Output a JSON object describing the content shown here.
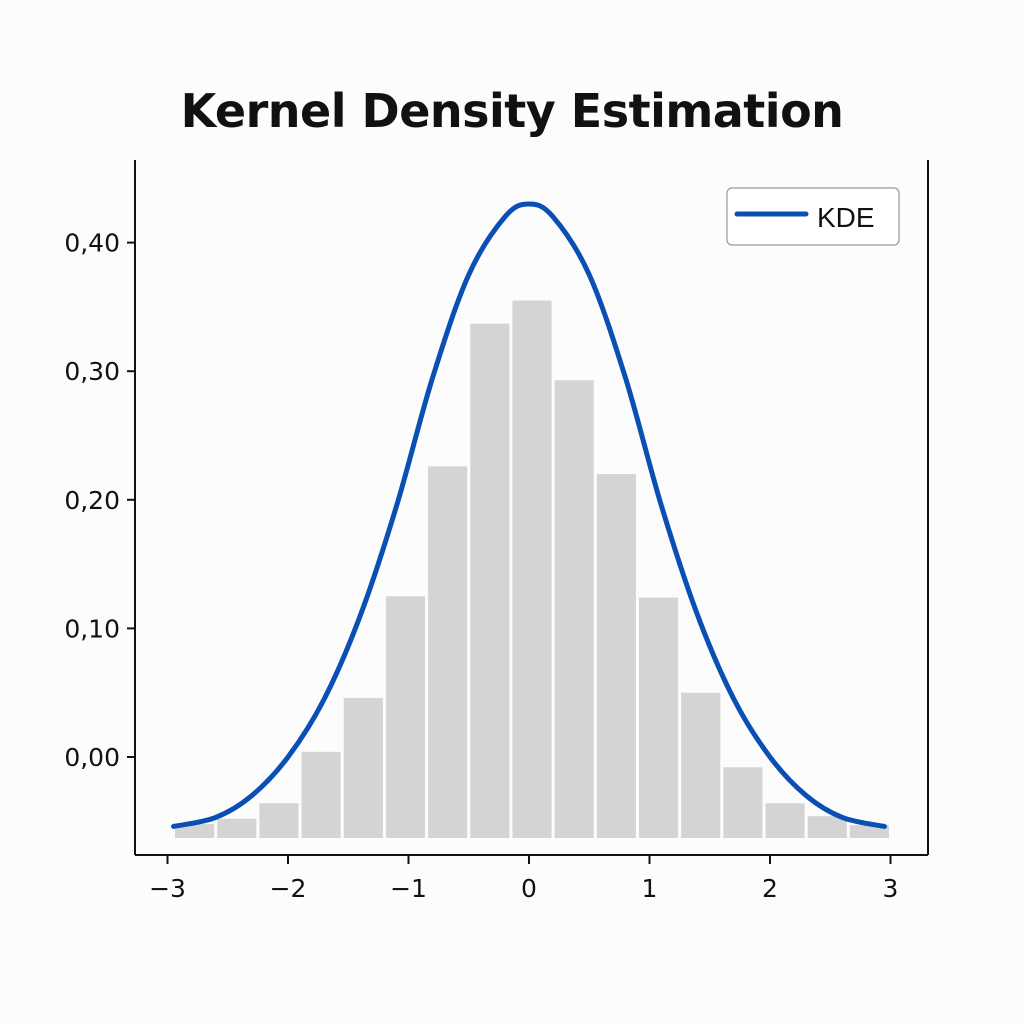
{
  "chart_data": {
    "type": "bar",
    "title": "Kernel Density Estimation",
    "xlabel": "",
    "ylabel": "",
    "xlim": [
      -3.3,
      3.3
    ],
    "ylim": [
      -0.075,
      0.47
    ],
    "xticks": [
      -3,
      -2,
      -1,
      0,
      1,
      2,
      3
    ],
    "xtick_labels": [
      "−3",
      "−2",
      "−1",
      "0",
      "1",
      "2",
      "3"
    ],
    "yticks": [
      0.0,
      0.1,
      0.2,
      0.3,
      0.4
    ],
    "ytick_labels": [
      "0,00",
      "0,10",
      "0,20",
      "0,30",
      "0,40"
    ],
    "histogram": {
      "bin_edges": [
        -2.95,
        -2.6,
        -2.25,
        -1.9,
        -1.55,
        -1.2,
        -0.85,
        -0.5,
        -0.15,
        0.2,
        0.55,
        0.9,
        1.25,
        1.6,
        1.95,
        2.3,
        2.65,
        3.0
      ],
      "heights": [
        -0.052,
        -0.048,
        -0.036,
        0.004,
        0.046,
        0.125,
        0.226,
        0.337,
        0.355,
        0.293,
        0.22,
        0.124,
        0.05,
        -0.008,
        -0.036,
        -0.046,
        -0.053
      ],
      "color": "#d4d4d4"
    },
    "series": [
      {
        "name": "KDE",
        "type": "line",
        "color": "#0a4fb4",
        "x": [
          -2.95,
          -2.6,
          -2.3,
          -2.0,
          -1.7,
          -1.4,
          -1.1,
          -0.8,
          -0.5,
          -0.2,
          0.0,
          0.2,
          0.5,
          0.8,
          1.1,
          1.4,
          1.7,
          2.0,
          2.3,
          2.6,
          2.95
        ],
        "y": [
          -0.054,
          -0.047,
          -0.03,
          0.0,
          0.045,
          0.11,
          0.195,
          0.295,
          0.375,
          0.42,
          0.43,
          0.42,
          0.375,
          0.295,
          0.195,
          0.11,
          0.045,
          0.0,
          -0.03,
          -0.047,
          -0.054
        ]
      }
    ],
    "grid": false,
    "legend_position": "top-right"
  }
}
